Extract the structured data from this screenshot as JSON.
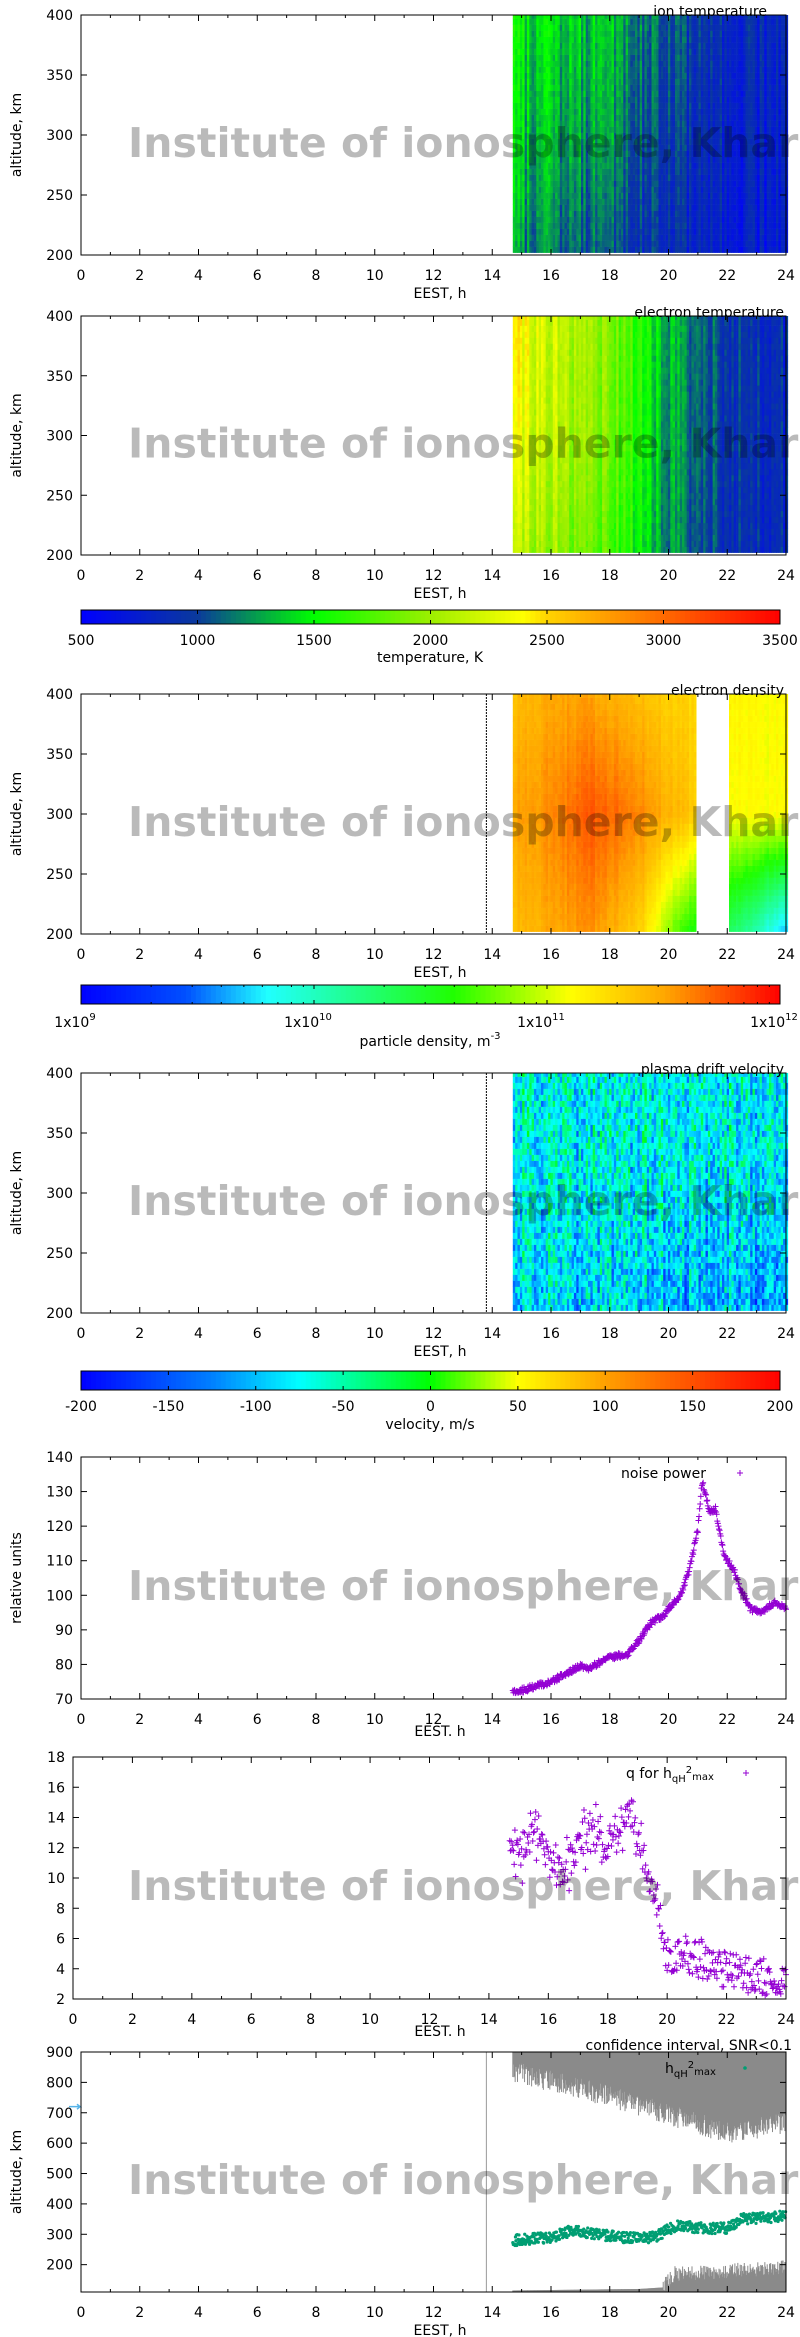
{
  "watermark": "Institute of ionosphere, Kharkiv",
  "colors": {
    "purple_marker": "#9400d3",
    "green_marker": "#009e73",
    "confidence_gray": "#8a8a8a",
    "arrow": "#56b4e9"
  },
  "colorbars": [
    {
      "id": "temperature",
      "title": "temperature, K",
      "range": [
        500,
        3500
      ],
      "tick_labels": [
        "500",
        "1000",
        "1500",
        "2000",
        "2500",
        "3000",
        "3500"
      ],
      "ticks": [
        500,
        1000,
        1500,
        2000,
        2500,
        3000,
        3500
      ],
      "stops": [
        [
          500,
          "#0000ff"
        ],
        [
          1000,
          "#0a3a9c"
        ],
        [
          1500,
          "#00ff00"
        ],
        [
          2000,
          "#9cef00"
        ],
        [
          2400,
          "#ffff00"
        ],
        [
          2500,
          "#ffd400"
        ],
        [
          3000,
          "#ff6a00"
        ],
        [
          3500,
          "#ff0000"
        ]
      ]
    },
    {
      "id": "density",
      "title": "particle density, m",
      "title_sup": "-3",
      "scale": "log",
      "range": [
        1000000000.0,
        1000000000000.0
      ],
      "ticks": [
        9,
        10,
        11,
        12
      ],
      "tick_labels": [
        {
          "base": "1x10",
          "exp": "9"
        },
        {
          "base": "1x10",
          "exp": "10"
        },
        {
          "base": "1x10",
          "exp": "11"
        },
        {
          "base": "1x10",
          "exp": "12"
        }
      ],
      "stops": [
        [
          9,
          "#0000ff"
        ],
        [
          9.45,
          "#0050ff"
        ],
        [
          9.8,
          "#20ffff"
        ],
        [
          10.1,
          "#20ffa0"
        ],
        [
          10.6,
          "#20ff00"
        ],
        [
          11.1,
          "#ffff00"
        ],
        [
          11.5,
          "#ffa800"
        ],
        [
          12,
          "#ff0000"
        ]
      ]
    },
    {
      "id": "velocity",
      "title": "velocity, m/s",
      "range": [
        -200,
        200
      ],
      "ticks": [
        -200,
        -150,
        -100,
        -50,
        0,
        50,
        100,
        150,
        200
      ],
      "tick_labels": [
        "-200",
        "-150",
        "-100",
        "-50",
        "0",
        "50",
        "100",
        "150",
        "200"
      ],
      "stops": [
        [
          -200,
          "#0000ff"
        ],
        [
          -125,
          "#0080ff"
        ],
        [
          -75,
          "#00ffff"
        ],
        [
          0,
          "#00ff00"
        ],
        [
          50,
          "#ffff00"
        ],
        [
          100,
          "#ffa000"
        ],
        [
          200,
          "#ff0000"
        ]
      ]
    }
  ],
  "chart_data": [
    {
      "type": "heatmap",
      "title": "ion temperature",
      "xlabel": "EEST, h",
      "ylabel": "altitude, km",
      "xlim": [
        0,
        24
      ],
      "ylim": [
        200,
        400
      ],
      "x_tick_labels": [
        "0",
        "2",
        "4",
        "6",
        "8",
        "10",
        "12",
        "14",
        "16",
        "18",
        "20",
        "22",
        "24"
      ],
      "y_tick_labels": [
        "200",
        "250",
        "300",
        "350",
        "400"
      ],
      "colorbar": "temperature",
      "data_start_h": 14.7,
      "values_by_time": {
        "x": [
          14.7,
          16,
          18,
          20,
          22,
          24
        ],
        "alt_400": [
          1450,
          1400,
          1300,
          1050,
          850,
          800
        ],
        "alt_300": [
          1350,
          1300,
          1200,
          950,
          800,
          750
        ],
        "alt_200": [
          1200,
          1150,
          1000,
          850,
          750,
          700
        ]
      }
    },
    {
      "type": "heatmap",
      "title": "electron temperature",
      "xlabel": "EEST, h",
      "ylabel": "altitude, km",
      "xlim": [
        0,
        24
      ],
      "ylim": [
        200,
        400
      ],
      "x_tick_labels": [
        "0",
        "2",
        "4",
        "6",
        "8",
        "10",
        "12",
        "14",
        "16",
        "18",
        "20",
        "22",
        "24"
      ],
      "y_tick_labels": [
        "200",
        "250",
        "300",
        "350",
        "400"
      ],
      "colorbar": "temperature",
      "data_start_h": 14.7,
      "values_by_time": {
        "x": [
          14.7,
          16,
          18,
          20,
          22,
          24
        ],
        "alt_400": [
          2400,
          2200,
          1900,
          1300,
          950,
          850
        ],
        "alt_300": [
          2300,
          2150,
          1850,
          1250,
          950,
          850
        ],
        "alt_200": [
          2100,
          2000,
          1700,
          1200,
          900,
          850
        ]
      }
    },
    {
      "type": "heatmap",
      "title": "electron density",
      "xlabel": "EEST, h",
      "ylabel": "altitude, km",
      "xlim": [
        0,
        24
      ],
      "ylim": [
        200,
        400
      ],
      "x_tick_labels": [
        "0",
        "2",
        "4",
        "6",
        "8",
        "10",
        "12",
        "14",
        "16",
        "18",
        "20",
        "22",
        "24"
      ],
      "y_tick_labels": [
        "200",
        "250",
        "300",
        "350",
        "400"
      ],
      "colorbar": "density",
      "data_start_h": 14.7,
      "marker_line_h": 13.8,
      "gap_h": [
        21.0,
        22.0
      ],
      "values_by_time": {
        "x": [
          14.7,
          16,
          17.5,
          19,
          20.5,
          21,
          22,
          23,
          24
        ],
        "alt_400": [
          11.4,
          11.5,
          11.5,
          11.4,
          11.3,
          11.3,
          11.15,
          11.1,
          11.1
        ],
        "alt_300": [
          11.5,
          11.6,
          11.75,
          11.6,
          11.4,
          11.3,
          11.1,
          11.1,
          11.1
        ],
        "alt_200": [
          11.4,
          11.5,
          11.55,
          11.3,
          10.6,
          10.5,
          10.3,
          10.0,
          9.6
        ]
      }
    },
    {
      "type": "heatmap",
      "title": "plasma drift velocity",
      "xlabel": "EEST, h",
      "ylabel": "altitude, km",
      "xlim": [
        0,
        24
      ],
      "ylim": [
        200,
        400
      ],
      "x_tick_labels": [
        "0",
        "2",
        "4",
        "6",
        "8",
        "10",
        "12",
        "14",
        "16",
        "18",
        "20",
        "22",
        "24"
      ],
      "y_tick_labels": [
        "200",
        "250",
        "300",
        "350",
        "400"
      ],
      "colorbar": "velocity",
      "data_start_h": 14.7,
      "marker_line_h": 13.8,
      "values_by_time": {
        "x": [
          14.7,
          18,
          21,
          24
        ],
        "alt_400": [
          -70,
          -75,
          -70,
          -80
        ],
        "alt_300": [
          -75,
          -80,
          -80,
          -85
        ],
        "alt_200": [
          -90,
          -95,
          -110,
          -120
        ]
      }
    },
    {
      "type": "scatter",
      "legend": "noise power",
      "xlabel": "EEST. h",
      "ylabel": "relative units",
      "xlim": [
        0,
        24
      ],
      "ylim": [
        70,
        140
      ],
      "x_tick_labels": [
        "0",
        "2",
        "4",
        "6",
        "8",
        "10",
        "12",
        "14",
        "16",
        "18",
        "20",
        "22",
        "24"
      ],
      "y_tick_labels": [
        "70",
        "80",
        "90",
        "100",
        "110",
        "120",
        "130",
        "140"
      ],
      "legend_position": "top-right",
      "x": [
        14.7,
        15,
        16,
        17,
        17.3,
        18,
        18.6,
        19,
        19.4,
        19.8,
        20.1,
        20.4,
        20.7,
        21,
        21.15,
        21.4,
        21.6,
        21.9,
        22.2,
        22.5,
        22.8,
        23.2,
        23.6,
        24
      ],
      "y": [
        72,
        72.5,
        75,
        79.5,
        79,
        82,
        83,
        87,
        92,
        94,
        97,
        100,
        107,
        119,
        133,
        124,
        125,
        111,
        108,
        101,
        96,
        95,
        98,
        96
      ]
    },
    {
      "type": "scatter",
      "legend_parts": [
        {
          "t": "q for h"
        },
        {
          "t": "qH",
          "s": "sub"
        },
        {
          "t": "2",
          "s": "sup"
        },
        {
          "t": "max",
          "s": "sub"
        }
      ],
      "xlabel": "EEST. h",
      "ylabel": "",
      "xlim": [
        0,
        24
      ],
      "ylim": [
        2,
        18
      ],
      "x_tick_labels": [
        "0",
        "2",
        "4",
        "6",
        "8",
        "10",
        "12",
        "14",
        "16",
        "18",
        "20",
        "22",
        "24"
      ],
      "y_tick_labels": [
        "2",
        "4",
        "6",
        "8",
        "10",
        "12",
        "14",
        "16",
        "18"
      ],
      "legend_position": "top-right",
      "x": [
        14.7,
        15.3,
        15.6,
        16,
        16.5,
        17,
        17.5,
        18,
        18.5,
        18.8,
        19.2,
        19.6,
        20,
        21,
        22,
        23,
        24
      ],
      "y": [
        11.5,
        12.5,
        13.5,
        11,
        10,
        12.5,
        13,
        12,
        13.5,
        14,
        11,
        9,
        5,
        4.8,
        3.8,
        3.5,
        3.2
      ]
    },
    {
      "type": "scatter",
      "title": "confidence interval, SNR<0.1",
      "legend_parts": [
        {
          "t": "h"
        },
        {
          "t": "qH",
          "s": "sub"
        },
        {
          "t": "2",
          "s": "sup"
        },
        {
          "t": "max",
          "s": "sub"
        }
      ],
      "xlabel": "EEST, h",
      "ylabel": "altitude, km",
      "xlim": [
        0,
        24
      ],
      "ylim": [
        110,
        900
      ],
      "x_tick_labels": [
        "0",
        "2",
        "4",
        "6",
        "8",
        "10",
        "12",
        "14",
        "16",
        "18",
        "20",
        "22",
        "24"
      ],
      "y_tick_labels": [
        "200",
        "300",
        "400",
        "500",
        "600",
        "700",
        "800",
        "900"
      ],
      "marker_line_h": 13.8,
      "left_arrow_value": 720,
      "x": [
        14.7,
        16,
        16.8,
        17.5,
        18.5,
        19.5,
        20.3,
        21,
        22,
        22.5,
        24
      ],
      "y": [
        280,
        290,
        315,
        300,
        290,
        290,
        330,
        320,
        320,
        350,
        360
      ],
      "confidence_upper_lower_edge": {
        "x": [
          14.7,
          16,
          18,
          20,
          22,
          24
        ],
        "y": [
          820,
          790,
          740,
          680,
          620,
          650
        ]
      },
      "confidence_lower_upper_edge": {
        "x": [
          14.7,
          19,
          19.8,
          20.2,
          24
        ],
        "y": [
          115,
          120,
          125,
          170,
          190
        ]
      }
    }
  ]
}
